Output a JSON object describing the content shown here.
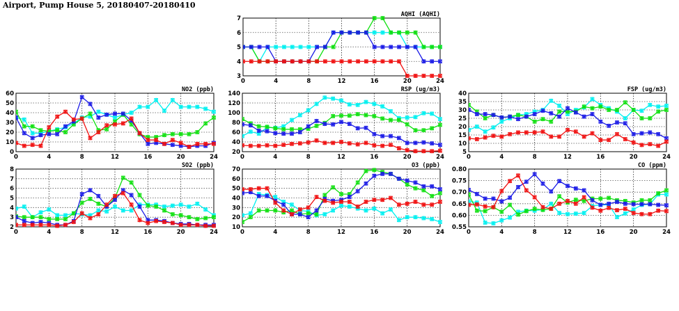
{
  "page_title": "Airport, Pump House 5, 20180407-20180410",
  "colors": {
    "cyan": "#00f0f0",
    "green": "#10e010",
    "blue": "#1a1ae6",
    "red": "#f01010"
  },
  "chart_data": [
    {
      "type": "line",
      "title": "AQHI (AQHI)",
      "xlim": [
        0,
        24
      ],
      "ylim": [
        3,
        7
      ],
      "xticks": [
        0,
        4,
        8,
        12,
        16,
        20,
        24
      ],
      "yticks": [
        3,
        4,
        5,
        6,
        7
      ],
      "grid": true,
      "series": [
        {
          "name": "cyan",
          "values": [
            5,
            5,
            4,
            5,
            5,
            5,
            5,
            5,
            5,
            5,
            5,
            6,
            6,
            6,
            6,
            6,
            6,
            6,
            6,
            6,
            5,
            5,
            5,
            5,
            5
          ]
        },
        {
          "name": "green",
          "values": [
            5,
            5,
            4,
            4,
            4,
            4,
            4,
            4,
            4,
            4,
            5,
            5,
            6,
            6,
            6,
            6,
            7,
            7,
            6,
            6,
            6,
            6,
            5,
            5,
            5
          ]
        },
        {
          "name": "blue",
          "values": [
            5,
            5,
            5,
            5,
            4,
            4,
            4,
            4,
            4,
            5,
            5,
            6,
            6,
            6,
            6,
            6,
            5,
            5,
            5,
            5,
            5,
            5,
            4,
            4,
            4
          ]
        },
        {
          "name": "red",
          "values": [
            4,
            4,
            4,
            4,
            4,
            4,
            4,
            4,
            4,
            4,
            4,
            4,
            4,
            4,
            4,
            4,
            4,
            4,
            4,
            4,
            3,
            3,
            3,
            3,
            3
          ]
        }
      ]
    },
    {
      "type": "line",
      "title": "NO2 (ppb)",
      "xlim": [
        0,
        24
      ],
      "ylim": [
        0,
        60
      ],
      "xticks": [
        0,
        4,
        8,
        12,
        16,
        20,
        24
      ],
      "yticks": [
        0,
        10,
        20,
        30,
        40,
        50,
        60
      ],
      "grid": true,
      "series": [
        {
          "name": "cyan",
          "values": [
            35,
            33,
            19,
            19,
            21,
            23,
            25,
            29,
            35,
            36,
            41,
            38,
            35,
            38,
            40,
            46,
            46,
            53,
            42,
            53,
            46,
            46,
            46,
            44,
            41
          ]
        },
        {
          "name": "green",
          "values": [
            41,
            26,
            26,
            22,
            21,
            22,
            20,
            28,
            34,
            39,
            22,
            23,
            31,
            38,
            28,
            18,
            15,
            15,
            17,
            18,
            18,
            18,
            20,
            29,
            35
          ]
        },
        {
          "name": "blue",
          "values": [
            35,
            19,
            14,
            17,
            18,
            18,
            26,
            31,
            56,
            49,
            35,
            38,
            39,
            39,
            32,
            19,
            8,
            9,
            8,
            7,
            6,
            5,
            6,
            6,
            9
          ]
        },
        {
          "name": "red",
          "values": [
            9,
            6,
            7,
            6,
            25,
            36,
            41,
            33,
            34,
            14,
            20,
            27,
            28,
            29,
            34,
            19,
            12,
            12,
            8,
            12,
            9,
            5,
            8,
            8,
            8
          ]
        }
      ]
    },
    {
      "type": "line",
      "title": "RSP (ug/m3)",
      "xlim": [
        0,
        24
      ],
      "ylim": [
        20,
        140
      ],
      "xticks": [
        0,
        4,
        8,
        12,
        16,
        20,
        24
      ],
      "yticks": [
        20,
        40,
        60,
        80,
        100,
        120,
        140
      ],
      "grid": true,
      "series": [
        {
          "name": "cyan",
          "values": [
            52,
            61,
            57,
            70,
            69,
            72,
            85,
            95,
            105,
            118,
            131,
            129,
            125,
            117,
            116,
            122,
            118,
            113,
            103,
            89,
            90,
            91,
            99,
            98,
            87
          ]
        },
        {
          "name": "green",
          "values": [
            87,
            78,
            72,
            71,
            68,
            66,
            66,
            66,
            67,
            73,
            79,
            93,
            94,
            94,
            97,
            95,
            93,
            88,
            85,
            85,
            76,
            64,
            64,
            68,
            75
          ]
        },
        {
          "name": "blue",
          "values": [
            76,
            74,
            63,
            62,
            58,
            57,
            57,
            60,
            72,
            83,
            77,
            76,
            81,
            77,
            68,
            69,
            56,
            52,
            52,
            48,
            38,
            38,
            39,
            37,
            34
          ]
        },
        {
          "name": "red",
          "values": [
            33,
            32,
            32,
            33,
            32,
            34,
            36,
            37,
            39,
            43,
            38,
            38,
            40,
            37,
            35,
            38,
            33,
            32,
            34,
            27,
            23,
            21,
            21,
            21,
            22
          ]
        }
      ]
    },
    {
      "type": "line",
      "title": "FSP (ug/m3)",
      "xlim": [
        0,
        24
      ],
      "ylim": [
        5,
        40
      ],
      "xticks": [
        0,
        4,
        8,
        12,
        16,
        20,
        24
      ],
      "yticks": [
        5,
        10,
        15,
        20,
        25,
        30,
        35,
        40
      ],
      "grid": true,
      "series": [
        {
          "name": "cyan",
          "values": [
            18,
            20,
            17,
            19.5,
            23,
            25,
            27,
            27.5,
            29,
            30,
            35.5,
            32.5,
            27.5,
            30,
            31.5,
            36.5,
            33,
            31,
            29,
            25,
            30,
            29.5,
            33,
            32,
            32.5
          ]
        },
        {
          "name": "green",
          "values": [
            33,
            29,
            25,
            27,
            25.5,
            26,
            27,
            26,
            23,
            24.5,
            23,
            29,
            29,
            29,
            32,
            31,
            32,
            30,
            30,
            34.5,
            30,
            25,
            25,
            29,
            30
          ]
        },
        {
          "name": "blue",
          "values": [
            30,
            27.5,
            27.5,
            27,
            25.5,
            26,
            24.5,
            26,
            27.5,
            29.5,
            28,
            26,
            31,
            28.5,
            26,
            27.5,
            23,
            20.5,
            22.5,
            22,
            15.5,
            16,
            16.5,
            15.5,
            13
          ]
        },
        {
          "name": "red",
          "values": [
            13,
            12.5,
            13.5,
            14.5,
            14,
            15.5,
            16.5,
            16.5,
            16.5,
            17,
            14,
            14,
            18,
            17,
            14,
            16,
            12,
            12,
            15.5,
            12.5,
            10.5,
            9,
            9.5,
            8.5,
            11
          ]
        }
      ]
    },
    {
      "type": "line",
      "title": "SO2 (ppb)",
      "xlim": [
        0,
        24
      ],
      "ylim": [
        2,
        8
      ],
      "xticks": [
        0,
        4,
        8,
        12,
        16,
        20,
        24
      ],
      "yticks": [
        2,
        3,
        4,
        5,
        6,
        7,
        8
      ],
      "grid": true,
      "series": [
        {
          "name": "cyan",
          "values": [
            3.9,
            4.1,
            3.0,
            3.5,
            3.8,
            3.2,
            3.2,
            3.4,
            3.3,
            3.2,
            3.7,
            3.6,
            4.1,
            3.7,
            3.7,
            4.3,
            4.3,
            4.3,
            4.1,
            4.2,
            4.3,
            4.1,
            4.4,
            3.8,
            3.2
          ]
        },
        {
          "name": "green",
          "values": [
            3.1,
            3.0,
            3.0,
            3.0,
            2.8,
            2.8,
            2.8,
            3.4,
            4.5,
            4.9,
            4.4,
            4.1,
            5.0,
            7.1,
            6.6,
            5.3,
            4.2,
            4.1,
            3.7,
            3.3,
            3.2,
            3.0,
            2.8,
            2.9,
            3.0
          ]
        },
        {
          "name": "blue",
          "values": [
            3.0,
            2.6,
            2.4,
            2.5,
            2.4,
            2.2,
            2.2,
            2.6,
            5.4,
            5.8,
            5.2,
            4.1,
            4.8,
            5.8,
            5.3,
            4.1,
            2.7,
            2.7,
            2.6,
            2.4,
            2.3,
            2.3,
            2.2,
            2.2,
            2.2
          ]
        },
        {
          "name": "red",
          "values": [
            2.2,
            2.2,
            2.2,
            2.2,
            2.2,
            2.1,
            2.2,
            2.5,
            3.4,
            2.9,
            3.3,
            4.3,
            5.2,
            5.5,
            4.3,
            2.7,
            2.4,
            2.6,
            2.5,
            2.4,
            2.2,
            2.2,
            2.2,
            2.1,
            2.1
          ]
        }
      ]
    },
    {
      "type": "line",
      "title": "O3 (ppb)",
      "xlim": [
        0,
        24
      ],
      "ylim": [
        10,
        70
      ],
      "xticks": [
        0,
        4,
        8,
        12,
        16,
        20,
        24
      ],
      "yticks": [
        10,
        20,
        30,
        40,
        50,
        60,
        70
      ],
      "grid": true,
      "series": [
        {
          "name": "cyan",
          "values": [
            22,
            24,
            44,
            43,
            41,
            36,
            33,
            27,
            26,
            22,
            23,
            27,
            32,
            31,
            29,
            27,
            29,
            24,
            28,
            17,
            20,
            20,
            19,
            18,
            15
          ]
        },
        {
          "name": "green",
          "values": [
            15,
            20,
            27,
            27,
            27,
            25,
            27,
            23,
            24,
            23,
            43,
            51,
            44,
            44,
            56,
            68,
            69,
            67,
            65,
            60,
            54,
            50,
            48,
            42,
            45
          ]
        },
        {
          "name": "blue",
          "values": [
            45,
            46,
            42,
            42,
            37,
            33,
            23,
            23,
            20,
            27,
            39,
            37,
            38,
            41,
            47,
            55,
            63,
            65,
            65,
            60,
            58,
            56,
            52,
            52,
            49
          ]
        },
        {
          "name": "red",
          "values": [
            49,
            49,
            50,
            50,
            35,
            27,
            23,
            28,
            30,
            41,
            37,
            35,
            36,
            36,
            31,
            36,
            38,
            38,
            40,
            33,
            34,
            36,
            33,
            33,
            36
          ]
        }
      ]
    },
    {
      "type": "line",
      "title": "CO (ppm)",
      "xlim": [
        0,
        24
      ],
      "ylim": [
        0.55,
        0.8
      ],
      "xticks": [
        0,
        4,
        8,
        12,
        16,
        20,
        24
      ],
      "yticks": [
        "0.55",
        "0.60",
        "0.65",
        "0.70",
        "0.75",
        "0.80"
      ],
      "grid": true,
      "series": [
        {
          "name": "cyan",
          "values": [
            0.66,
            0.655,
            0.568,
            0.565,
            0.578,
            0.59,
            0.615,
            0.62,
            0.62,
            0.625,
            0.65,
            0.61,
            0.605,
            0.607,
            0.61,
            0.64,
            0.645,
            0.645,
            0.592,
            0.608,
            0.625,
            0.645,
            0.648,
            0.69,
            0.69
          ]
        },
        {
          "name": "green",
          "values": [
            0.69,
            0.62,
            0.618,
            0.635,
            0.615,
            0.645,
            0.603,
            0.618,
            0.628,
            0.623,
            0.628,
            0.682,
            0.655,
            0.667,
            0.662,
            0.672,
            0.672,
            0.675,
            0.665,
            0.662,
            0.655,
            0.665,
            0.665,
            0.695,
            0.708
          ]
        },
        {
          "name": "blue",
          "values": [
            0.71,
            0.692,
            0.672,
            0.672,
            0.66,
            0.676,
            0.722,
            0.745,
            0.778,
            0.737,
            0.703,
            0.748,
            0.727,
            0.716,
            0.708,
            0.665,
            0.645,
            0.65,
            0.658,
            0.65,
            0.648,
            0.648,
            0.648,
            0.645,
            0.643
          ]
        },
        {
          "name": "red",
          "values": [
            0.645,
            0.647,
            0.638,
            0.635,
            0.705,
            0.748,
            0.772,
            0.708,
            0.678,
            0.635,
            0.628,
            0.65,
            0.662,
            0.65,
            0.678,
            0.633,
            0.62,
            0.632,
            0.622,
            0.628,
            0.61,
            0.605,
            0.605,
            0.62,
            0.618
          ]
        }
      ]
    }
  ]
}
